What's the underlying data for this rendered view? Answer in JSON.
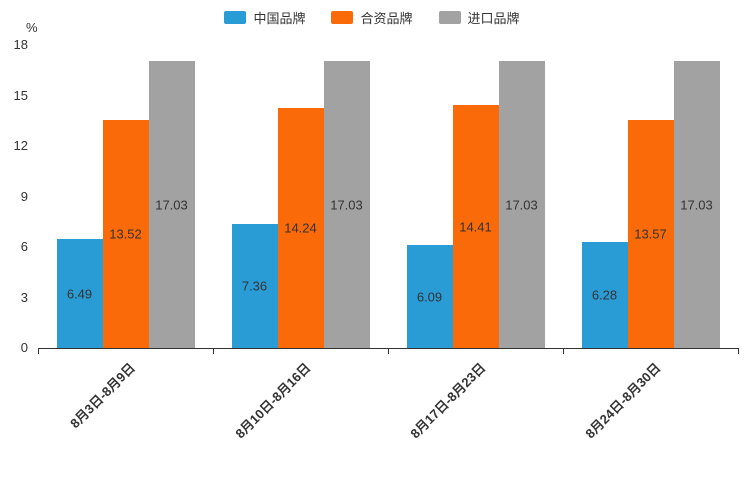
{
  "chart_data": {
    "type": "bar",
    "title": "",
    "categories": [
      "8月3日-8月9日",
      "8月10日-8月16日",
      "8月17日-8月23日",
      "8月24日-8月30日"
    ],
    "series": [
      {
        "name": "中国品牌",
        "color": "#2A9CD5",
        "values": [
          6.49,
          7.36,
          6.09,
          6.28
        ]
      },
      {
        "name": "合资品牌",
        "color": "#FB6A09",
        "values": [
          13.52,
          14.24,
          14.41,
          13.57
        ]
      },
      {
        "name": "进口品牌",
        "color": "#A2A2A2",
        "values": [
          17.03,
          17.03,
          17.03,
          17.03
        ]
      }
    ],
    "xlabel": "",
    "ylabel": "%",
    "ylim": [
      0,
      18
    ],
    "yticks": [
      0,
      3,
      6,
      9,
      12,
      15,
      18
    ],
    "grid": false,
    "legend_position": "top",
    "value_labels": true,
    "value_label_color": "#333333",
    "axis_color": "#333333",
    "background_color": "#ffffff"
  }
}
